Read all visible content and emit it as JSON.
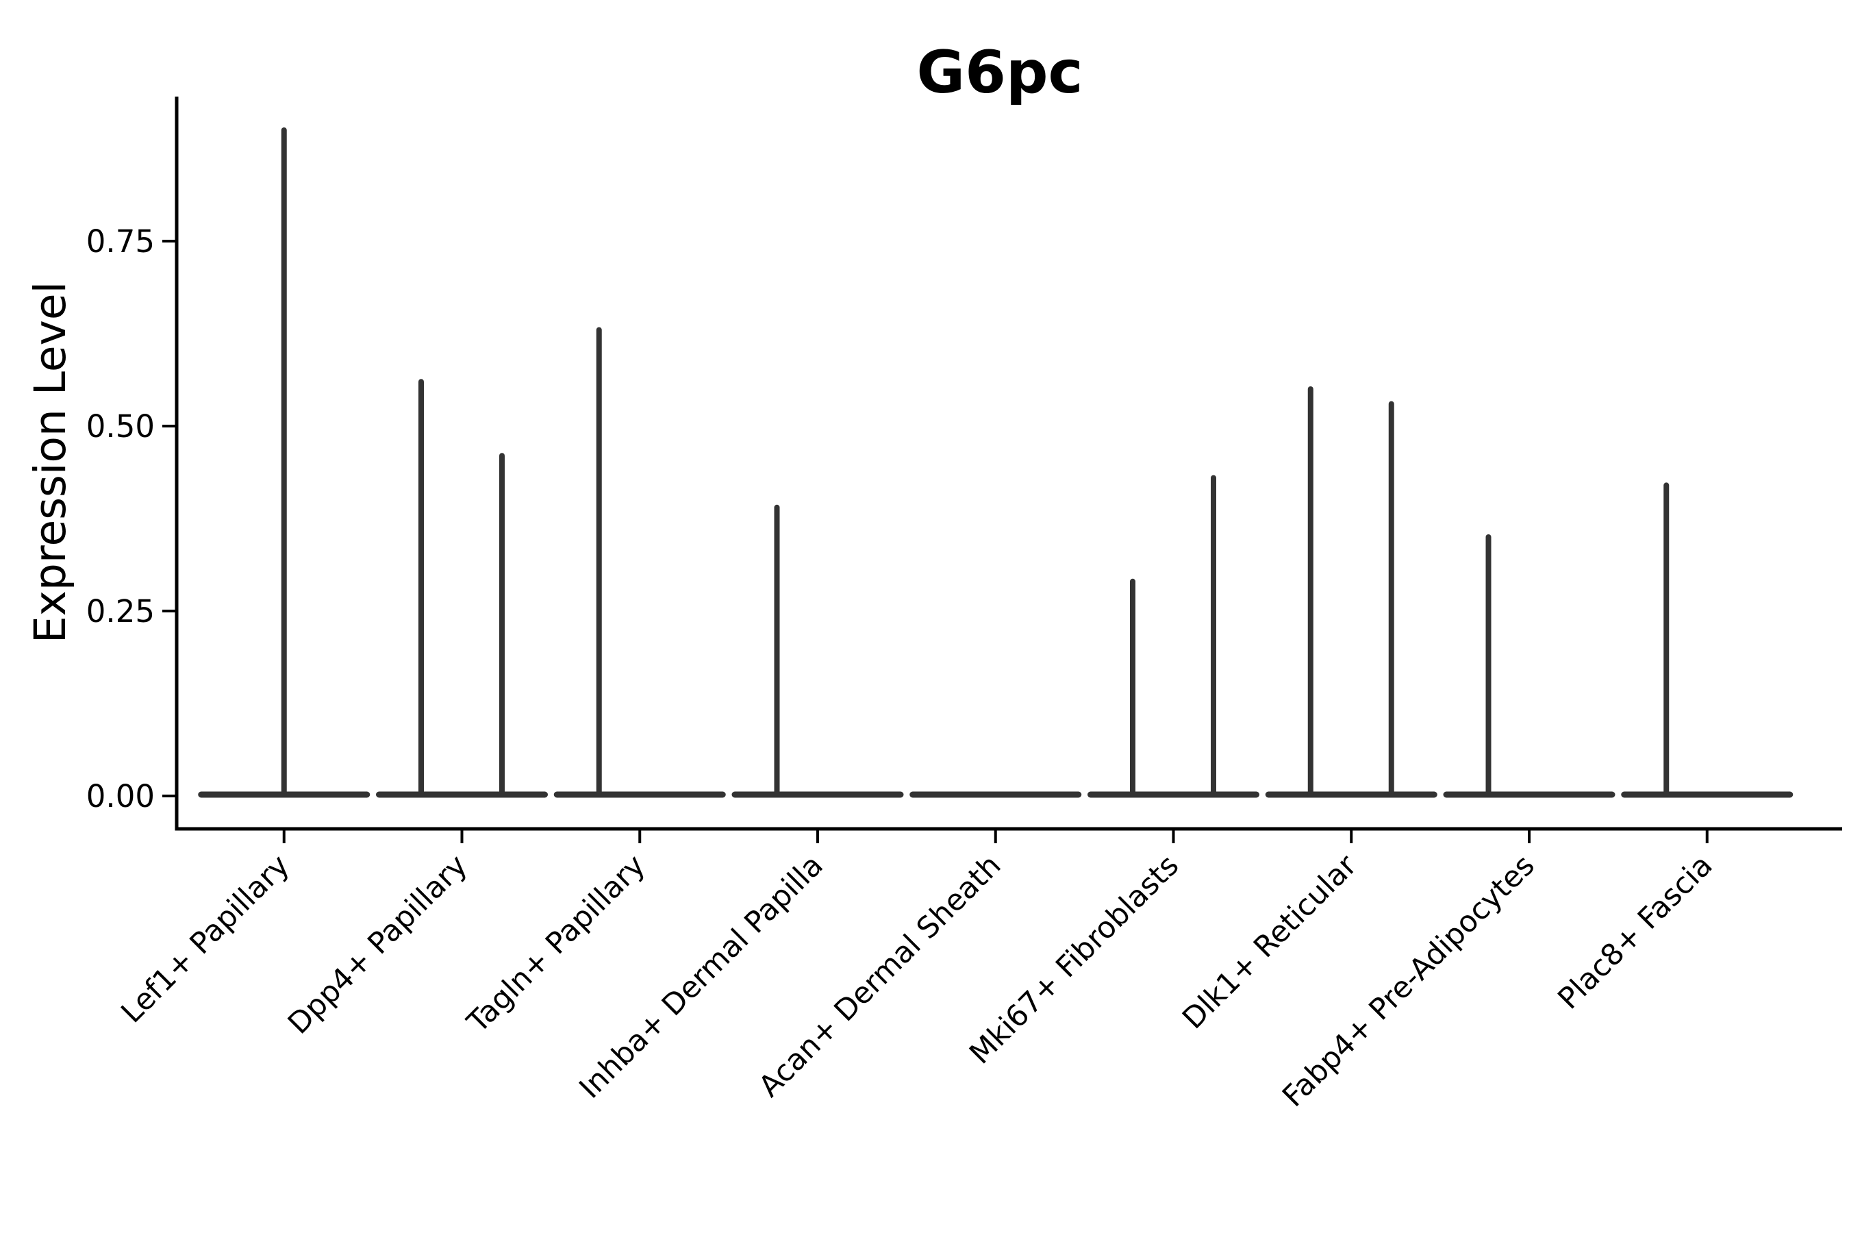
{
  "chart_data": {
    "type": "violin",
    "title": "G6pc",
    "ylabel": "Expression Level",
    "xlabel": "",
    "grid": false,
    "legend": null,
    "ylim": [
      -0.04,
      0.95
    ],
    "baseline_value": 0.0,
    "y_ticks": [
      {
        "label": "0.00",
        "value": 0.0
      },
      {
        "label": "0.25",
        "value": 0.25
      },
      {
        "label": "0.50",
        "value": 0.5
      },
      {
        "label": "0.75",
        "value": 0.75
      }
    ],
    "categories": [
      {
        "label": "Lef1+ Papillary",
        "spikes": [
          {
            "group": "center",
            "value": 0.9
          }
        ]
      },
      {
        "label": "Dpp4+ Papillary",
        "spikes": [
          {
            "group": "left",
            "value": 0.56
          },
          {
            "group": "right",
            "value": 0.46
          }
        ]
      },
      {
        "label": "Tagln+ Papillary",
        "spikes": [
          {
            "group": "left",
            "value": 0.63
          }
        ]
      },
      {
        "label": "Inhba+ Dermal Papilla",
        "spikes": [
          {
            "group": "left",
            "value": 0.39
          }
        ]
      },
      {
        "label": "Acan+ Dermal Sheath",
        "spikes": []
      },
      {
        "label": "Mki67+ Fibroblasts",
        "spikes": [
          {
            "group": "left",
            "value": 0.29
          },
          {
            "group": "right",
            "value": 0.43
          }
        ]
      },
      {
        "label": "Dlk1+ Reticular",
        "spikes": [
          {
            "group": "left",
            "value": 0.55
          },
          {
            "group": "right",
            "value": 0.53
          }
        ]
      },
      {
        "label": "Fabp4+ Pre-Adipocytes",
        "spikes": [
          {
            "group": "left",
            "value": 0.35
          }
        ]
      },
      {
        "label": "Plac8+ Fascia",
        "spikes": [
          {
            "group": "left",
            "value": 0.42
          }
        ]
      }
    ],
    "colors": {
      "violin": "#333333",
      "axis": "#000000",
      "text": "#000000",
      "background": "#ffffff"
    }
  }
}
